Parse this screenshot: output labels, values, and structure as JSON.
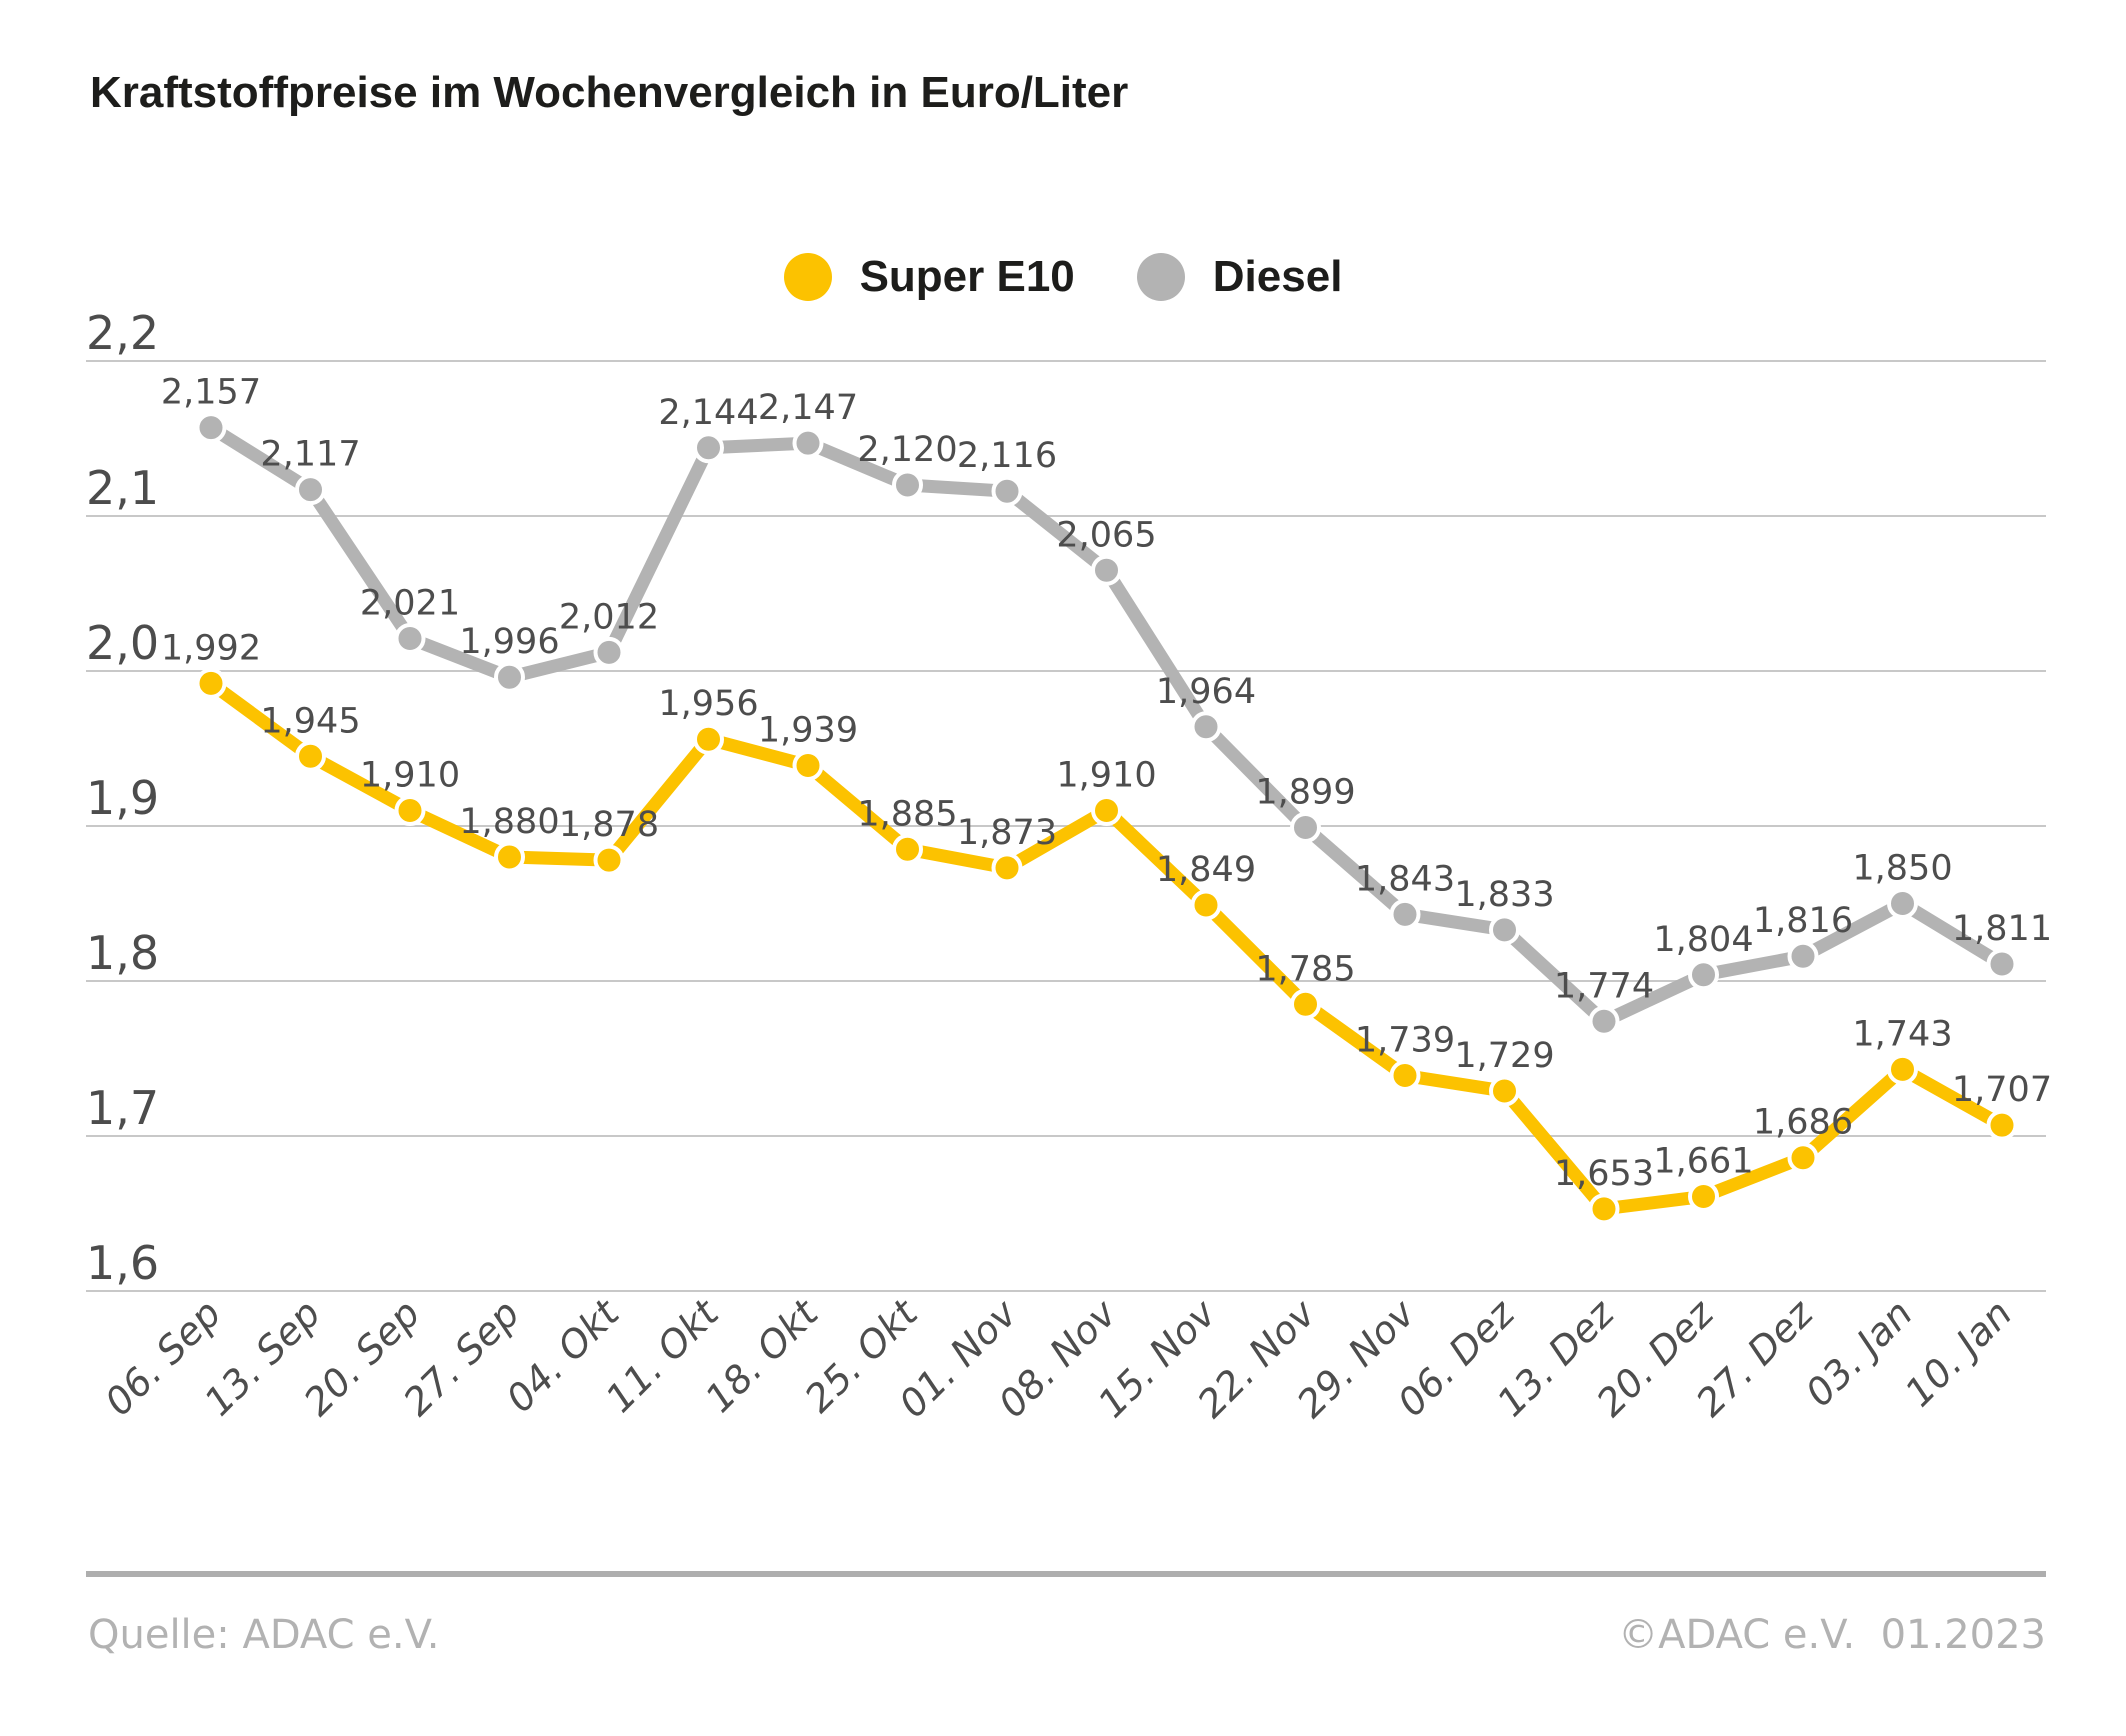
{
  "title": "Kraftstoffpreise im Wochenvergleich in Euro/Liter",
  "legend": [
    {
      "label": "Super E10",
      "color": "#FCC200"
    },
    {
      "label": "Diesel",
      "color": "#B3B3B3"
    }
  ],
  "chart_data": {
    "type": "line",
    "title": "Kraftstoffpreise im Wochenvergleich in Euro/Liter",
    "xlabel": "",
    "ylabel": "Euro/Liter",
    "categories": [
      "06. Sep",
      "13. Sep",
      "20. Sep",
      "27. Sep",
      "04. Okt",
      "11. Okt",
      "18. Okt",
      "25. Okt",
      "01. Nov",
      "08. Nov",
      "15. Nov",
      "22. Nov",
      "29. Nov",
      "06. Dez",
      "13. Dez",
      "20. Dez",
      "27. Dez",
      "03. Jan",
      "10. Jan"
    ],
    "series": [
      {
        "name": "Super E10",
        "color": "#FCC200",
        "values": [
          1.992,
          1.945,
          1.91,
          1.88,
          1.878,
          1.956,
          1.939,
          1.885,
          1.873,
          1.91,
          1.849,
          1.785,
          1.739,
          1.729,
          1.653,
          1.661,
          1.686,
          1.743,
          1.707
        ]
      },
      {
        "name": "Diesel",
        "color": "#B3B3B3",
        "values": [
          2.157,
          2.117,
          2.021,
          1.996,
          2.012,
          2.144,
          2.147,
          2.12,
          2.116,
          2.065,
          1.964,
          1.899,
          1.843,
          1.833,
          1.774,
          1.804,
          1.816,
          1.85,
          1.811
        ]
      }
    ],
    "ylim": [
      1.6,
      2.2
    ],
    "y_ticks": [
      2.2,
      2.1,
      2.0,
      1.9,
      1.8,
      1.7,
      1.6
    ],
    "grid": "horizontal",
    "legend_position": "top-center",
    "decimal_separator": ",",
    "value_labels": true
  },
  "footer": {
    "source": "Quelle: ADAC e.V.",
    "copyright": "©ADAC e.V.  01.2023"
  },
  "colors": {
    "background": "#FFFFFF",
    "grid": "#C8C8C8",
    "value_label": "#4D4D4D",
    "axis_label": "#4C4C4C",
    "title": "#1D1D1B",
    "footer_text": "#B2B2B2",
    "divider": "#AEAEAE",
    "dot_stroke": "#FFFFFF"
  }
}
